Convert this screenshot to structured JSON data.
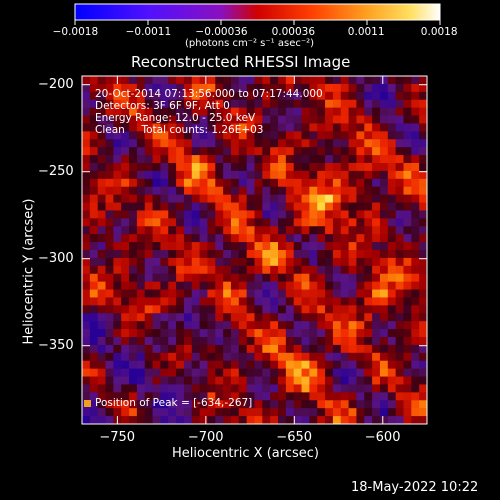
{
  "chart_data": {
    "type": "heatmap",
    "title": "Reconstructed RHESSI Image",
    "xlabel": "Heliocentric X (arcsec)",
    "ylabel": "Heliocentric Y (arcsec)",
    "xlim": [
      -770,
      -575
    ],
    "ylim": [
      -395,
      -195
    ],
    "x_ticks": [
      -750,
      -700,
      -650,
      -600
    ],
    "y_ticks": [
      -200,
      -250,
      -300,
      -350
    ],
    "x_tick_labels": [
      "−750",
      "−700",
      "−650",
      "−600"
    ],
    "y_tick_labels": [
      "−200",
      "−250",
      "−300",
      "−350"
    ],
    "colorbar": {
      "range": [
        -0.0018,
        0.0018
      ],
      "tick_labels": [
        "−0.0018",
        "−0.0011",
        "−0.00036",
        "0.00036",
        "0.0011",
        "0.0018"
      ],
      "unit_label": "(photons cm⁻² s⁻¹ asec⁻²)",
      "colors": [
        "#0000ff",
        "#6a00ff",
        "#e00000",
        "#ff7000",
        "#ffd040",
        "#ffffff"
      ]
    },
    "info_lines": [
      "20-Oct-2014 07:13:56.000 to 07:17:44.000",
      "Detectors: 3F 6F 9F, Att 0",
      "Energy Range: 12.0 - 25.0 keV",
      "Clean     Total counts: 1.26E+03"
    ],
    "peak_label": "Position of Peak = [-634,-267]",
    "peak_position": [
      -634,
      -267
    ]
  },
  "footer": {
    "timestamp": "18-May-2022 10:22"
  }
}
